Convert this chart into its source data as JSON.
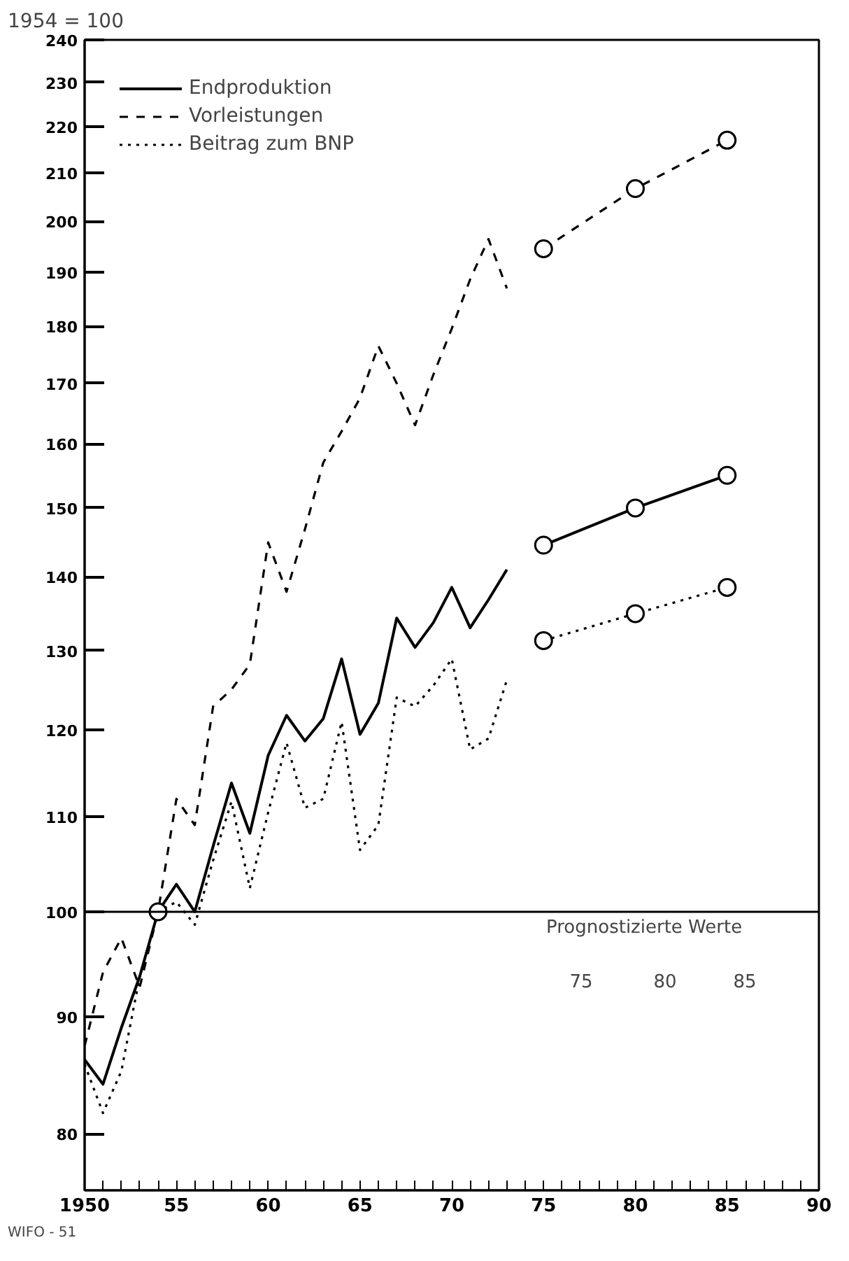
{
  "chart_data": {
    "type": "line",
    "ylabel": "1954 = 100",
    "log": "y",
    "xlim": [
      1950,
      1990
    ],
    "ylim": [
      75.6,
      240
    ],
    "xticks": [
      {
        "value": 1950,
        "label": "1950"
      },
      {
        "value": 1951,
        "label": null
      },
      {
        "value": 1952,
        "label": null
      },
      {
        "value": 1953,
        "label": null
      },
      {
        "value": 1954,
        "label": null
      },
      {
        "value": 1955,
        "label": "55"
      },
      {
        "value": 1956,
        "label": null
      },
      {
        "value": 1957,
        "label": null
      },
      {
        "value": 1958,
        "label": null
      },
      {
        "value": 1959,
        "label": null
      },
      {
        "value": 1960,
        "label": "60"
      },
      {
        "value": 1961,
        "label": null
      },
      {
        "value": 1962,
        "label": null
      },
      {
        "value": 1963,
        "label": null
      },
      {
        "value": 1964,
        "label": null
      },
      {
        "value": 1965,
        "label": "65"
      },
      {
        "value": 1966,
        "label": null
      },
      {
        "value": 1967,
        "label": null
      },
      {
        "value": 1968,
        "label": null
      },
      {
        "value": 1969,
        "label": null
      },
      {
        "value": 1970,
        "label": "70"
      },
      {
        "value": 1971,
        "label": null
      },
      {
        "value": 1972,
        "label": null
      },
      {
        "value": 1973,
        "label": null
      },
      {
        "value": 1974,
        "label": null
      },
      {
        "value": 1975,
        "label": "75"
      },
      {
        "value": 1976,
        "label": null
      },
      {
        "value": 1977,
        "label": null
      },
      {
        "value": 1978,
        "label": null
      },
      {
        "value": 1979,
        "label": null
      },
      {
        "value": 1980,
        "label": "80"
      },
      {
        "value": 1981,
        "label": null
      },
      {
        "value": 1982,
        "label": null
      },
      {
        "value": 1983,
        "label": null
      },
      {
        "value": 1984,
        "label": null
      },
      {
        "value": 1985,
        "label": "85"
      },
      {
        "value": 1986,
        "label": null
      },
      {
        "value": 1987,
        "label": null
      },
      {
        "value": 1988,
        "label": null
      },
      {
        "value": 1989,
        "label": null
      },
      {
        "value": 1990,
        "label": "90"
      }
    ],
    "yticks": [
      80,
      90,
      100,
      110,
      120,
      130,
      140,
      150,
      160,
      170,
      180,
      190,
      200,
      210,
      220,
      230,
      240
    ],
    "grid": false,
    "legend": "top left",
    "x": [
      1950,
      1951,
      1952,
      1953,
      1954,
      1955,
      1956,
      1957,
      1958,
      1959,
      1960,
      1961,
      1962,
      1963,
      1964,
      1965,
      1966,
      1967,
      1968,
      1969,
      1970,
      1971,
      1972,
      1973
    ],
    "series": [
      {
        "name": "Endproduktion",
        "color": "#000000",
        "line_style": "solid",
        "marker": "none",
        "values": [
          86.2,
          84.1,
          89,
          93.7,
          100,
          102.8,
          100,
          106.8,
          113.8,
          108.2,
          117,
          121.8,
          118.7,
          121.4,
          128.9,
          119.5,
          123.3,
          134.3,
          130.4,
          133.7,
          138.5,
          133,
          136.8,
          141
        ]
      },
      {
        "name": "Vorleistungen",
        "color": "#000000",
        "line_style": "dashed",
        "marker": "none",
        "values": [
          87.4,
          94.1,
          97.4,
          92.7,
          100,
          112,
          109.1,
          122.9,
          125,
          128.2,
          144.9,
          137.9,
          146.8,
          157,
          162,
          167.5,
          176.5,
          170,
          163,
          171.5,
          179.6,
          188.7,
          196.5,
          187
        ]
      },
      {
        "name": "Beitrag zum BNP",
        "color": "#000000",
        "line_style": "dotted",
        "marker": "none",
        "values": [
          85.8,
          81.7,
          85.2,
          93.7,
          100,
          101,
          98.7,
          105.3,
          111.7,
          102.4,
          110.5,
          118.5,
          111,
          112,
          121,
          106.4,
          109.1,
          124,
          122.9,
          125.5,
          128.9,
          117.7,
          119,
          126.2
        ]
      },
      {
        "color": "#000000",
        "line_style": "solid",
        "marker": "circle",
        "x": [
          1975,
          1980,
          1985
        ],
        "values": [
          144.5,
          150,
          155
        ]
      },
      {
        "color": "#000000",
        "line_style": "dashed",
        "marker": "circle",
        "x": [
          1975,
          1980,
          1985
        ],
        "values": [
          194.6,
          206.7,
          217
        ]
      },
      {
        "color": "#000000",
        "line_style": "dotted",
        "marker": "circle",
        "x": [
          1975,
          1980,
          1985
        ],
        "values": [
          131.3,
          134.9,
          138.5
        ]
      },
      {
        "type": "scatter",
        "color": "#000000",
        "marker": "circle",
        "x": [
          1954
        ],
        "values": [
          100
        ]
      }
    ],
    "ref_lines": [
      {
        "axis": "y",
        "value": 100,
        "color": "#000000",
        "line_style": "solid"
      }
    ],
    "annotations": [
      "Prognostizierte Werte",
      "75",
      "80",
      "85",
      "WIFO - 51"
    ]
  }
}
